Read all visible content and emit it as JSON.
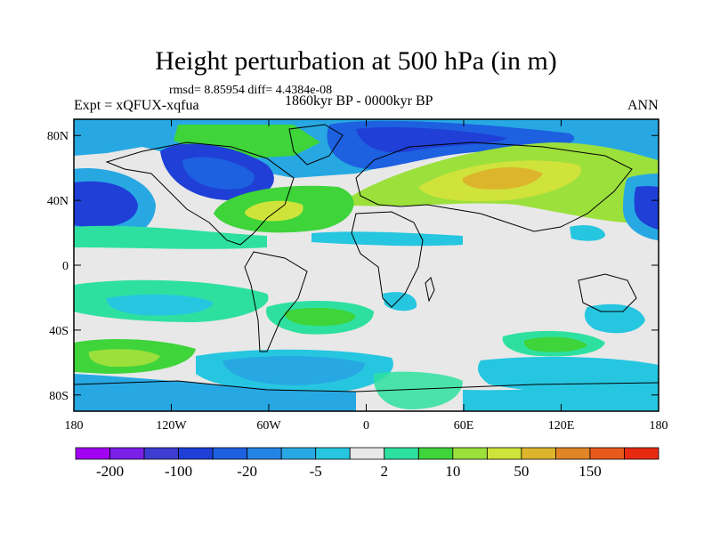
{
  "chart_data": {
    "type": "heatmap",
    "title": "Height perturbation at 500 hPa (in m)",
    "stats_text": "rmsd= 8.85954 diff= 4.4384e-08",
    "left_label": "Expt = xQFUX-xqfua",
    "center_label": "1860kyr BP - 0000kyr BP",
    "right_label": "ANN",
    "x_ticks": [
      "180",
      "120W",
      "60W",
      "0",
      "60E",
      "120E",
      "180"
    ],
    "y_ticks": [
      "80N",
      "40N",
      "0",
      "40S",
      "80S"
    ],
    "xlim": [
      -180,
      180
    ],
    "ylim": [
      -90,
      90
    ],
    "colorbar": {
      "levels": [
        -200,
        -150,
        -100,
        -50,
        -20,
        -10,
        -5,
        -2,
        2,
        5,
        10,
        20,
        50,
        100,
        150,
        200
      ],
      "labels": [
        "-200",
        "-100",
        "-20",
        "-5",
        "2",
        "10",
        "50",
        "150"
      ],
      "colors": [
        "#a100f2",
        "#7a1fe8",
        "#3d3dd1",
        "#1f3fd6",
        "#1d60e0",
        "#2484e6",
        "#27a8e3",
        "#26c6e0",
        "#e8e8e8",
        "#2ee0a0",
        "#3ed43a",
        "#9ce03c",
        "#cfe33a",
        "#ddb52c",
        "#e08426",
        "#e85a1c",
        "#e82a12"
      ]
    },
    "regions": [
      {
        "name": "north-pacific-low",
        "lon": -165,
        "lat": 38,
        "value": -60
      },
      {
        "name": "north-america-arctic-low",
        "lon": -90,
        "lat": 60,
        "value": -60
      },
      {
        "name": "eurasia-arctic-low",
        "lon": 30,
        "lat": 78,
        "value": -45
      },
      {
        "name": "eurasia-high",
        "lon": 60,
        "lat": 48,
        "value": 45
      },
      {
        "name": "atlantic-high",
        "lon": -55,
        "lat": 35,
        "value": 35
      },
      {
        "name": "pacific-southern-high",
        "lon": -130,
        "lat": -50,
        "value": 12
      },
      {
        "name": "southern-ocean-low",
        "lon": -40,
        "lat": -68,
        "value": -15
      }
    ]
  }
}
